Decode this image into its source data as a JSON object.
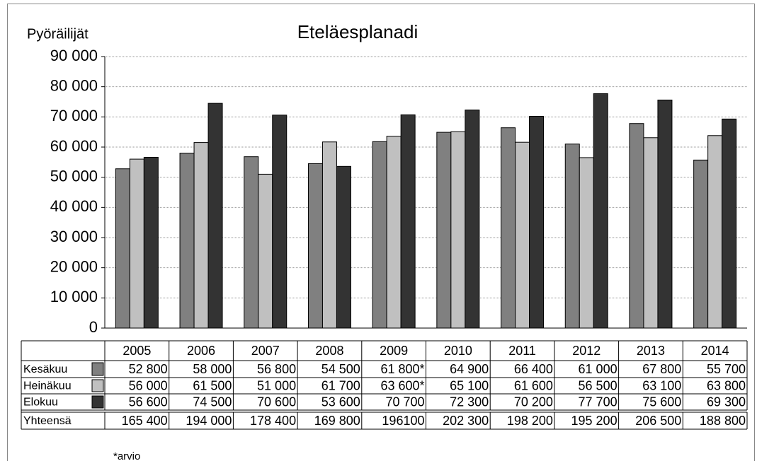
{
  "chart_data": {
    "type": "bar",
    "title": "Eteläesplanadi",
    "y_label": "Pyöräilijät",
    "categories": [
      "2005",
      "2006",
      "2007",
      "2008",
      "2009",
      "2010",
      "2011",
      "2012",
      "2013",
      "2014"
    ],
    "series": [
      {
        "name": "Kesäkuu",
        "color": "#808080",
        "values": [
          52800,
          58000,
          56800,
          54500,
          61800,
          64900,
          66400,
          61000,
          67800,
          55700
        ],
        "value_labels": [
          "52 800",
          "58 000",
          "56 800",
          "54 500",
          "61 800*",
          "64 900",
          "66 400",
          "61 000",
          "67 800",
          "55 700"
        ]
      },
      {
        "name": "Heinäkuu",
        "color": "#c0c0c0",
        "values": [
          56000,
          61500,
          51000,
          61700,
          63600,
          65100,
          61600,
          56500,
          63100,
          63800
        ],
        "value_labels": [
          "56 000",
          "61 500",
          "51 000",
          "61 700",
          "63 600*",
          "65 100",
          "61 600",
          "56 500",
          "63 100",
          "63 800"
        ]
      },
      {
        "name": "Elokuu",
        "color": "#333333",
        "values": [
          56600,
          74500,
          70600,
          53600,
          70700,
          72300,
          70200,
          77700,
          75600,
          69300
        ],
        "value_labels": [
          "56 600",
          "74 500",
          "70 600",
          "53 600",
          "70 700",
          "72 300",
          "70 200",
          "77 700",
          "75 600",
          "69 300"
        ]
      }
    ],
    "totals": {
      "name": "Yhteensä",
      "values": [
        165400,
        194000,
        178400,
        169800,
        196100,
        202300,
        198200,
        195200,
        206500,
        188800
      ],
      "value_labels": [
        "165 400",
        "194 000",
        "178 400",
        "169 800",
        "196100",
        "202 300",
        "198 200",
        "195 200",
        "206 500",
        "188 800"
      ]
    },
    "footnote": "*arvio",
    "ylim": [
      0,
      90000
    ],
    "yticks": [
      0,
      {
        "value": 10000,
        "label": "10 000"
      },
      {
        "value": 20000,
        "label": "20 000"
      },
      {
        "value": 30000,
        "label": "30 000"
      },
      {
        "value": 40000,
        "label": "40 000"
      },
      {
        "value": 50000,
        "label": "50 000"
      },
      {
        "value": 60000,
        "label": "60 000"
      },
      {
        "value": 70000,
        "label": "70 000"
      },
      {
        "value": 80000,
        "label": "80 000"
      },
      {
        "value": 90000,
        "label": "90 000"
      }
    ],
    "grid": true
  }
}
